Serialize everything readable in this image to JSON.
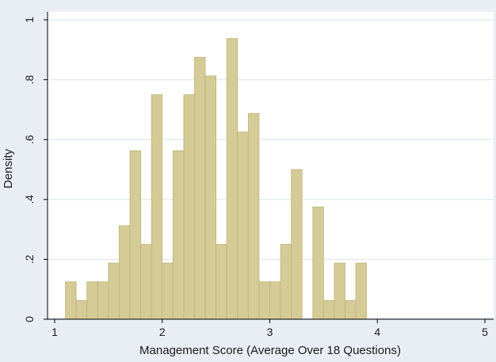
{
  "chart_data": {
    "type": "bar",
    "title": "",
    "xlabel": "Management Score (Average Over 18 Questions)",
    "ylabel": "Density",
    "xlim": [
      1,
      5
    ],
    "ylim": [
      0,
      1
    ],
    "x_ticks": [
      "1",
      "2",
      "3",
      "4",
      "5"
    ],
    "y_ticks": [
      "0",
      ".2",
      ".4",
      ".6",
      ".8",
      "1"
    ],
    "grid": true,
    "bin_width": 0.1,
    "bins": [
      {
        "x0": 1.1,
        "value": 0.125
      },
      {
        "x0": 1.2,
        "value": 0.0625
      },
      {
        "x0": 1.3,
        "value": 0.125
      },
      {
        "x0": 1.4,
        "value": 0.125
      },
      {
        "x0": 1.5,
        "value": 0.1875
      },
      {
        "x0": 1.6,
        "value": 0.3125
      },
      {
        "x0": 1.7,
        "value": 0.5625
      },
      {
        "x0": 1.8,
        "value": 0.25
      },
      {
        "x0": 1.9,
        "value": 0.75
      },
      {
        "x0": 2.0,
        "value": 0.1875
      },
      {
        "x0": 2.1,
        "value": 0.5625
      },
      {
        "x0": 2.2,
        "value": 0.75
      },
      {
        "x0": 2.3,
        "value": 0.875
      },
      {
        "x0": 2.4,
        "value": 0.8125
      },
      {
        "x0": 2.5,
        "value": 0.25
      },
      {
        "x0": 2.6,
        "value": 0.9375
      },
      {
        "x0": 2.7,
        "value": 0.625
      },
      {
        "x0": 2.8,
        "value": 0.6875
      },
      {
        "x0": 2.9,
        "value": 0.125
      },
      {
        "x0": 3.0,
        "value": 0.125
      },
      {
        "x0": 3.1,
        "value": 0.25
      },
      {
        "x0": 3.2,
        "value": 0.5
      },
      {
        "x0": 3.4,
        "value": 0.375
      },
      {
        "x0": 3.5,
        "value": 0.0625
      },
      {
        "x0": 3.6,
        "value": 0.1875
      },
      {
        "x0": 3.7,
        "value": 0.0625
      },
      {
        "x0": 3.8,
        "value": 0.1875
      }
    ],
    "colors": {
      "background": "#e8eef3",
      "plot_background": "#ffffff",
      "bar_fill": "#d4cb97",
      "bar_stroke": "#bfb478",
      "grid": "#e6ebef",
      "axis": "#000000"
    }
  }
}
